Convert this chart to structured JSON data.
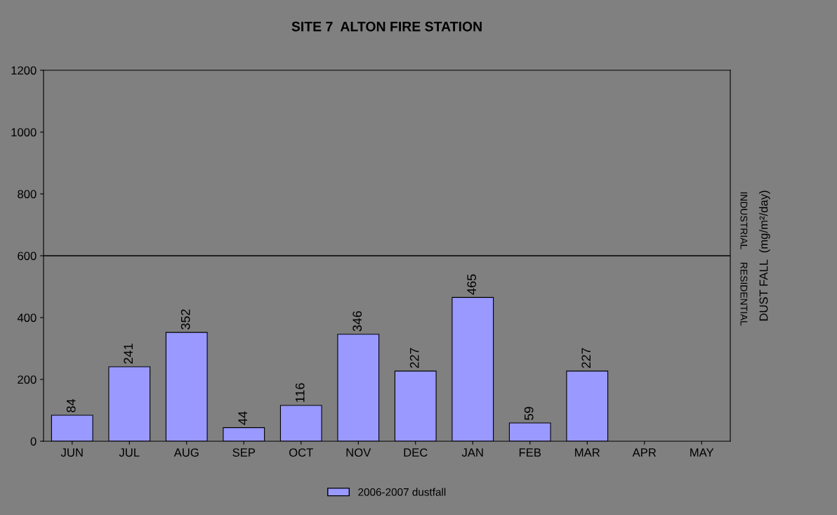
{
  "chart_data": {
    "type": "bar",
    "title": "SITE 7  ALTON FIRE STATION",
    "ylabel": "DUST FALL  (mg/m²/day)",
    "categories": [
      "JUN",
      "JUL",
      "AUG",
      "SEP",
      "OCT",
      "NOV",
      "DEC",
      "JAN",
      "FEB",
      "MAR",
      "APR",
      "MAY"
    ],
    "series": [
      {
        "name": "2006-2007 dustfall",
        "color": "#9999ff",
        "values": [
          84,
          241,
          352,
          44,
          116,
          346,
          227,
          465,
          59,
          227,
          null,
          null
        ]
      }
    ],
    "ylim": [
      0,
      1200
    ],
    "yticks": [
      0,
      200,
      400,
      600,
      800,
      1000,
      1200
    ],
    "ref_lines": [
      {
        "axis": "y",
        "value": 600,
        "color": "#000000",
        "line_style": "solid"
      }
    ],
    "annotations": [
      "INDUSTRIAL",
      "RESIDENTIAL"
    ],
    "data_labels": true,
    "legend": "bottom",
    "grid": false
  }
}
